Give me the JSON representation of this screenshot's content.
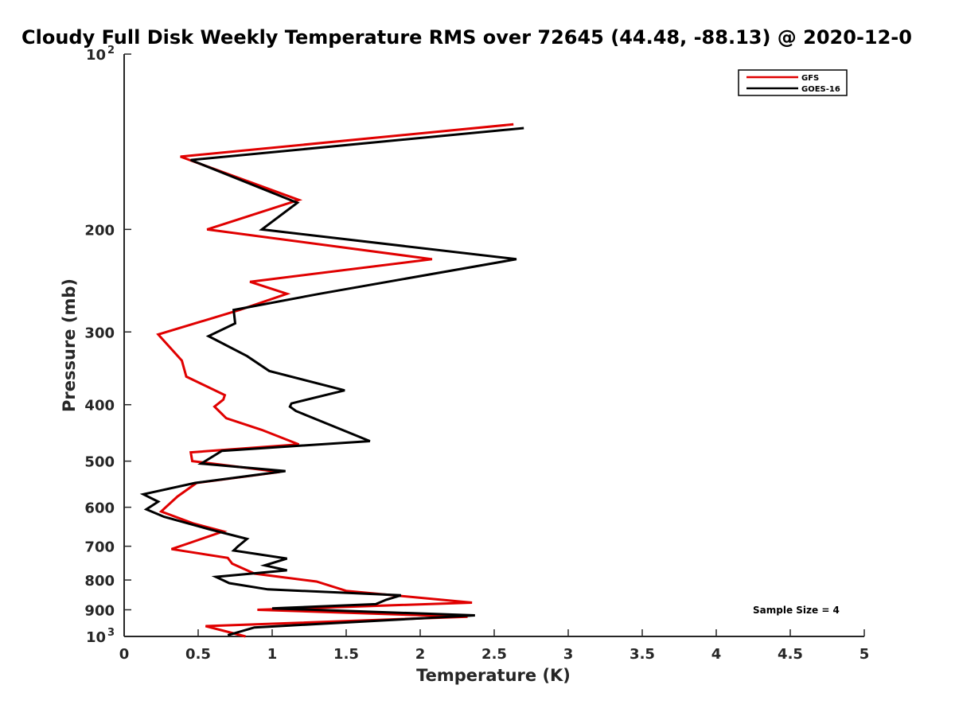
{
  "chart_data": {
    "type": "line",
    "title": "Cloudy Full Disk Weekly Temperature RMS over 72645 (44.48, -88.13) @ 2020-12-0",
    "xlabel": "Temperature (K)",
    "ylabel": "Pressure (mb)",
    "xlim": [
      0,
      5
    ],
    "ylim": [
      100,
      1000
    ],
    "y_scale": "log",
    "y_reversed": true,
    "x_ticks": [
      "0",
      "0.5",
      "1",
      "1.5",
      "2",
      "2.5",
      "3",
      "3.5",
      "4",
      "4.5",
      "5"
    ],
    "y_ticks": [
      {
        "value": 100,
        "label": "10",
        "sup": "2"
      },
      {
        "value": 200,
        "label": "200",
        "sup": ""
      },
      {
        "value": 300,
        "label": "300",
        "sup": ""
      },
      {
        "value": 400,
        "label": "400",
        "sup": ""
      },
      {
        "value": 500,
        "label": "500",
        "sup": ""
      },
      {
        "value": 600,
        "label": "600",
        "sup": ""
      },
      {
        "value": 700,
        "label": "700",
        "sup": ""
      },
      {
        "value": 800,
        "label": "800",
        "sup": ""
      },
      {
        "value": 900,
        "label": "900",
        "sup": ""
      },
      {
        "value": 1000,
        "label": "10",
        "sup": "3"
      }
    ],
    "grid": false,
    "legend_position": "top-right",
    "series": [
      {
        "name": "GFS",
        "color": "#e00000",
        "x": [
          2.63,
          0.38,
          1.18,
          0.56,
          2.08,
          0.85,
          1.1,
          0.78,
          0.23,
          0.39,
          0.42,
          0.68,
          0.67,
          0.61,
          0.69,
          0.93,
          1.18,
          0.45,
          0.46,
          1.05,
          0.49,
          0.36,
          0.25,
          0.47,
          0.67,
          0.45,
          0.32,
          0.7,
          0.73,
          0.88,
          1.3,
          1.5,
          2.35,
          0.9,
          2.32,
          0.55,
          0.82
        ],
        "y": [
          132,
          150,
          178,
          200,
          225,
          246,
          258,
          275,
          303,
          336,
          358,
          385,
          392,
          403,
          422,
          442,
          468,
          483,
          500,
          522,
          545,
          575,
          610,
          640,
          660,
          690,
          708,
          733,
          750,
          780,
          805,
          835,
          875,
          900,
          925,
          960,
          1000
        ]
      },
      {
        "name": "GOES-16",
        "color": "#000000",
        "x": [
          2.7,
          0.45,
          1.17,
          0.93,
          2.65,
          1.32,
          0.74,
          0.75,
          0.57,
          0.83,
          0.98,
          1.49,
          1.13,
          1.12,
          1.16,
          1.66,
          0.66,
          0.52,
          1.09,
          0.48,
          0.13,
          0.23,
          0.15,
          0.27,
          0.58,
          0.83,
          0.77,
          0.74,
          1.1,
          0.95,
          1.1,
          0.62,
          0.71,
          0.97,
          1.87,
          1.77,
          1.7,
          1.0,
          2.37,
          0.88,
          0.7
        ],
        "y": [
          134,
          152,
          180,
          200,
          225,
          258,
          275,
          290,
          305,
          330,
          350,
          378,
          398,
          403,
          410,
          462,
          480,
          505,
          520,
          545,
          570,
          587,
          605,
          623,
          655,
          680,
          700,
          712,
          735,
          755,
          770,
          790,
          810,
          830,
          850,
          865,
          880,
          895,
          920,
          965,
          995
        ]
      }
    ],
    "annotations": [
      "Sample Size = 4"
    ]
  }
}
